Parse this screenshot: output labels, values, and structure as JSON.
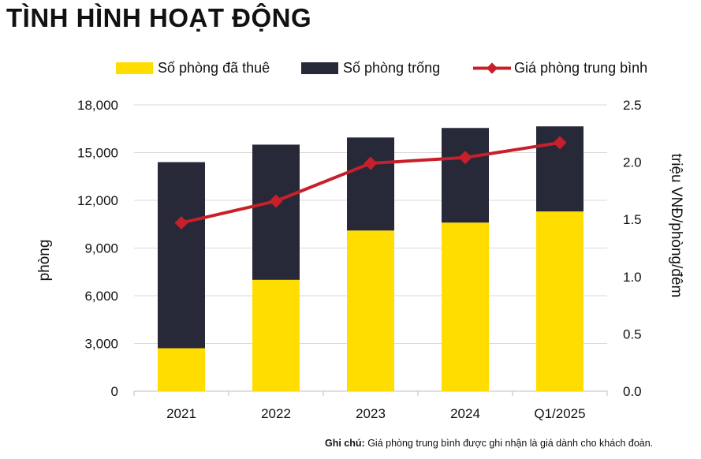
{
  "page": {
    "title": "TÌNH HÌNH HOẠT ĐỘNG",
    "note_label": "Ghi chú:",
    "note_text": "Giá phòng trung bình được ghi nhận là giá dành cho khách đoàn."
  },
  "colors": {
    "occupied": "#FFDD00",
    "vacant": "#272838",
    "price_line": "#C8202A",
    "axis_text": "#111111"
  },
  "chart_data": {
    "type": "bar",
    "stacked": true,
    "categories": [
      "2021",
      "2022",
      "2023",
      "2024",
      "Q1/2025"
    ],
    "series": [
      {
        "name": "Số phòng đã thuê",
        "values": [
          2700,
          7000,
          10100,
          10600,
          11300
        ]
      },
      {
        "name": "Số phòng trống",
        "values": [
          11700,
          8500,
          5850,
          5950,
          5350
        ]
      }
    ],
    "line_series": {
      "name": "Giá phòng trung bình",
      "axis": "right",
      "values": [
        1.47,
        1.66,
        1.99,
        2.04,
        2.17
      ]
    },
    "ylabel": "phòng",
    "y2label": "triệu VNĐ/phòng/đêm",
    "ylim": [
      0,
      18000
    ],
    "y2lim": [
      0,
      2.5
    ],
    "yticks": [
      "0",
      "3,000",
      "6,000",
      "9,000",
      "12,000",
      "15,000",
      "18,000"
    ],
    "y2ticks": [
      "0.0",
      "0.5",
      "1.0",
      "1.5",
      "2.0",
      "2.5"
    ],
    "grid": true,
    "legend_position": "top"
  }
}
